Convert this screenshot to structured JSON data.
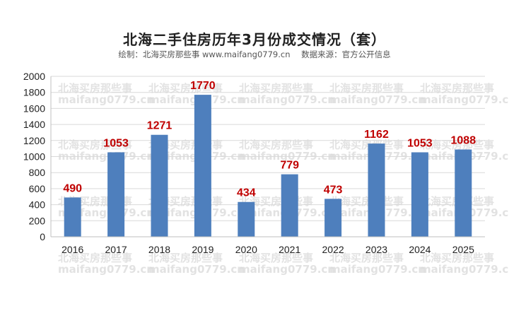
{
  "header": {
    "title": "北海二手住房历年3月份成交情况（套）",
    "credit": "绘制：北海买房那些事 www.maifang0779.cn",
    "source": "数据来源：官方公开信息"
  },
  "watermark": {
    "line1": "北海买房那些事",
    "line2": "maifang0779.cn"
  },
  "colors": {
    "bar": "#4e7fbd",
    "label": "#c00000",
    "grid": "#d9d9d9",
    "axis": "#bfbfbf"
  },
  "chart_data": {
    "type": "bar",
    "categories": [
      "2016",
      "2017",
      "2018",
      "2019",
      "2020",
      "2021",
      "2022",
      "2023",
      "2024",
      "2025"
    ],
    "values": [
      490,
      1053,
      1271,
      1770,
      434,
      779,
      473,
      1162,
      1053,
      1088
    ],
    "title": "北海二手住房历年3月份成交情况（套）",
    "ylim": [
      0,
      2000
    ],
    "yticks": [
      0,
      200,
      400,
      600,
      800,
      1000,
      1200,
      1400,
      1600,
      1800,
      2000
    ],
    "grid": true,
    "data_labels": true
  }
}
